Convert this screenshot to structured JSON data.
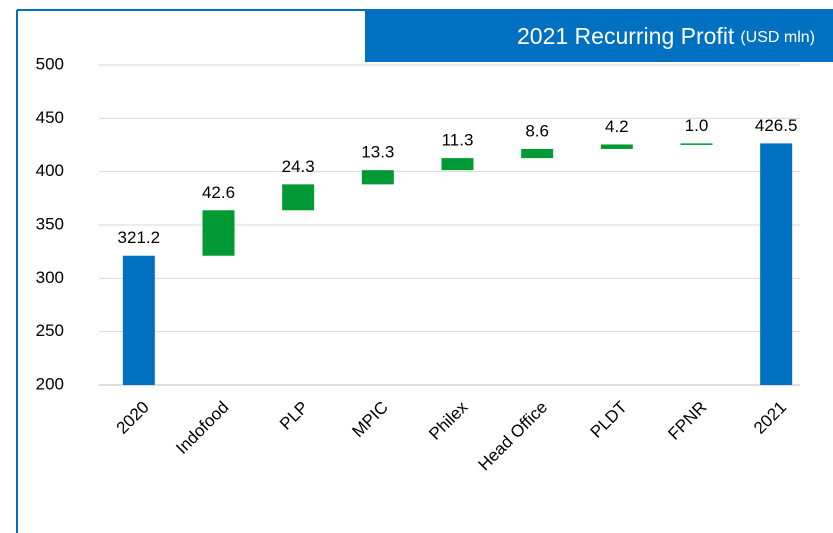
{
  "chart_data": {
    "type": "waterfall",
    "title": "2021 Recurring Profit",
    "subtitle": "(USD mln)",
    "categories": [
      "2020",
      "Indofood",
      "PLP",
      "MPIC",
      "Philex",
      "Head Office",
      "PLDT",
      "FPNR",
      "2021"
    ],
    "values": [
      321.2,
      42.6,
      24.3,
      13.3,
      11.3,
      8.6,
      4.2,
      1.0,
      426.5
    ],
    "value_labels": [
      "321.2",
      "42.6",
      "24.3",
      "13.3",
      "11.3",
      "8.6",
      "4.2",
      "1.0",
      "426.5"
    ],
    "measure": [
      "total",
      "relative",
      "relative",
      "relative",
      "relative",
      "relative",
      "relative",
      "relative",
      "total"
    ],
    "total_color": "#0070c0",
    "increase_color": "#009933",
    "ylim": [
      200,
      500
    ],
    "yticks": [
      200,
      250,
      300,
      350,
      400,
      450,
      500
    ],
    "grid": true
  }
}
